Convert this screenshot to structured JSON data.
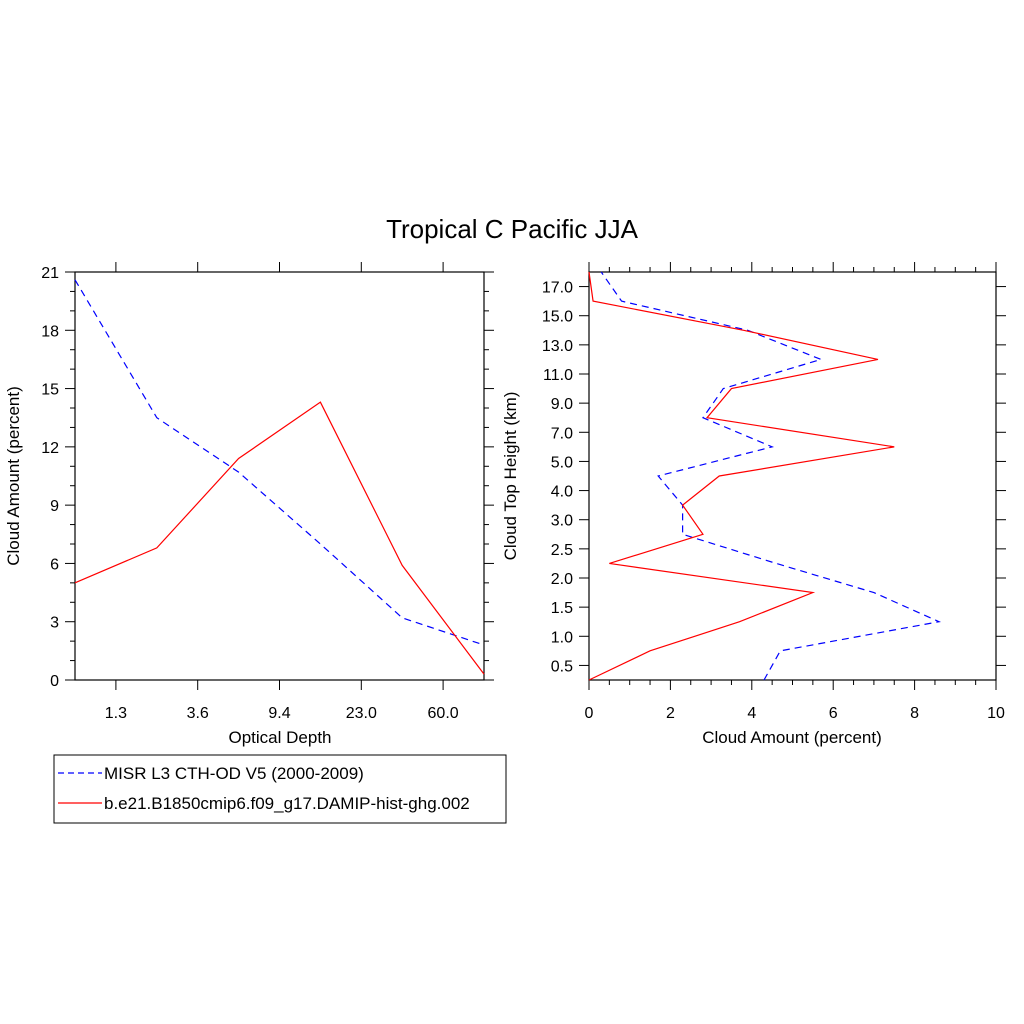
{
  "title": "Tropical C Pacific JJA",
  "legend": [
    {
      "label": "MISR L3 CTH-OD V5 (2000-2009)",
      "color": "#0000ff",
      "style": "dashed"
    },
    {
      "label": "b.e21.B1850cmip6.f09_g17.DAMIP-hist-ghg.002",
      "color": "#ff0000",
      "style": "solid"
    }
  ],
  "chart_data": [
    {
      "type": "line",
      "title": "",
      "xlabel": "Optical Depth",
      "ylabel": "Cloud Amount (percent)",
      "x_tick_labels": [
        "1.3",
        "3.6",
        "9.4",
        "23.0",
        "60.0"
      ],
      "x_categories": [
        0.3,
        1.3,
        2.45,
        3.6,
        6.5,
        9.4,
        16.2,
        23.0,
        41.5,
        60.0,
        80.0
      ],
      "ylim": [
        0,
        21
      ],
      "y_ticks": [
        0,
        3,
        6,
        9,
        12,
        15,
        18,
        21
      ],
      "series": [
        {
          "name": "MISR L3 CTH-OD V5 (2000-2009)",
          "color": "#0000ff",
          "dash": true,
          "values": [
            20.6,
            13.5,
            10.7,
            7.0,
            3.2,
            1.8
          ]
        },
        {
          "name": "b.e21.B1850cmip6.f09_g17.DAMIP-hist-ghg.002",
          "color": "#ff0000",
          "dash": false,
          "values": [
            5.0,
            6.8,
            11.4,
            14.3,
            5.9,
            0.3
          ]
        }
      ]
    },
    {
      "type": "line",
      "title": "",
      "xlabel": "Cloud Amount (percent)",
      "ylabel": "Cloud Top Height (km)",
      "xlim": [
        0,
        10
      ],
      "x_ticks": [
        0,
        2,
        4,
        6,
        8,
        10
      ],
      "y_tick_labels": [
        "0.5",
        "1.0",
        "1.5",
        "2.0",
        "2.5",
        "3.0",
        "4.0",
        "5.0",
        "7.0",
        "9.0",
        "11.0",
        "13.0",
        "15.0",
        "17.0"
      ],
      "y_levels": [
        "0.25",
        "0.75",
        "1.25",
        "1.75",
        "2.25",
        "2.75",
        "3.5",
        "4.5",
        "6.0",
        "8.0",
        "10.0",
        "12.0",
        "14.0",
        "16.0",
        "18.0"
      ],
      "series": [
        {
          "name": "MISR L3 CTH-OD V5 (2000-2009)",
          "color": "#0000ff",
          "dash": true,
          "values": [
            4.3,
            4.7,
            8.6,
            7.0,
            4.6,
            2.3,
            2.3,
            1.7,
            4.5,
            2.8,
            3.3,
            5.7,
            3.9,
            0.8,
            0.3
          ]
        },
        {
          "name": "b.e21.B1850cmip6.f09_g17.DAMIP-hist-ghg.002",
          "color": "#ff0000",
          "dash": false,
          "values": [
            0.0,
            1.5,
            3.7,
            5.5,
            0.5,
            2.8,
            2.3,
            3.2,
            7.5,
            2.9,
            3.5,
            7.1,
            3.8,
            0.1,
            0.0
          ]
        }
      ]
    }
  ]
}
